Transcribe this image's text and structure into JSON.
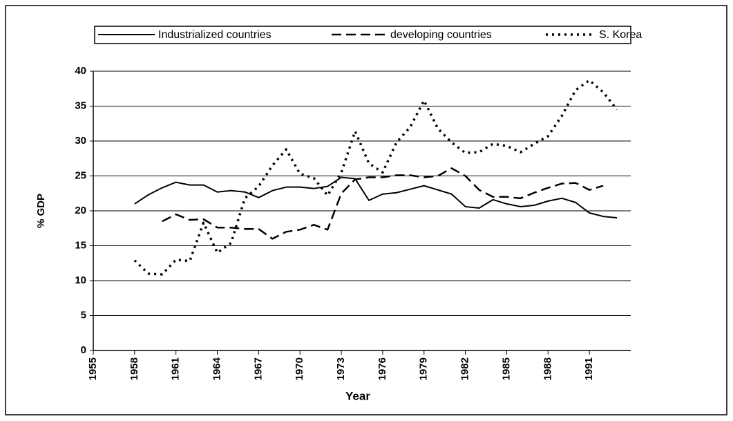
{
  "chart_data": {
    "type": "line",
    "xlabel": "Year",
    "ylabel": "% GDP",
    "x": [
      1958,
      1959,
      1960,
      1961,
      1962,
      1963,
      1964,
      1965,
      1966,
      1967,
      1968,
      1969,
      1970,
      1971,
      1972,
      1973,
      1974,
      1975,
      1976,
      1977,
      1978,
      1979,
      1980,
      1981,
      1982,
      1983,
      1984,
      1985,
      1986,
      1987,
      1988,
      1989,
      1990,
      1991,
      1992,
      1993
    ],
    "series": [
      {
        "name": "Industrialized countries",
        "color": "#000000",
        "style": "solid",
        "values": [
          21,
          22.3,
          23.3,
          24.1,
          23.7,
          23.7,
          22.7,
          22.9,
          22.7,
          21.9,
          22.9,
          23.4,
          23.4,
          23.2,
          23.5,
          24.8,
          24.6,
          21.5,
          22.4,
          22.6,
          23.1,
          23.6,
          23.0,
          22.4,
          20.6,
          20.4,
          21.6,
          21.0,
          20.6,
          20.8,
          21.4,
          21.8,
          21.2,
          19.7,
          19.2,
          19.0
        ]
      },
      {
        "name": "developing countries",
        "color": "#000000",
        "style": "dashed",
        "values": [
          null,
          null,
          18.5,
          19.5,
          18.7,
          18.8,
          17.6,
          17.6,
          17.4,
          17.4,
          16.0,
          17.0,
          17.3,
          18.0,
          17.3,
          22.5,
          24.5,
          24.8,
          24.8,
          25.1,
          25.1,
          24.8,
          25.0,
          26.1,
          25.0,
          23.0,
          22.0,
          22.0,
          21.8,
          22.6,
          23.3,
          23.9,
          24.0,
          23.0,
          23.6,
          null
        ]
      },
      {
        "name": "S. Korea",
        "color": "#000000",
        "style": "dotted",
        "values": [
          12.9,
          11.0,
          10.9,
          13.0,
          12.8,
          18.3,
          14.0,
          15.4,
          21.8,
          23.5,
          26.5,
          28.8,
          25.3,
          24.7,
          22.2,
          25.5,
          31.4,
          26.8,
          25.5,
          29.8,
          32.0,
          35.8,
          31.8,
          29.8,
          28.3,
          28.4,
          29.6,
          29.3,
          28.4,
          29.6,
          30.7,
          33.6,
          37.3,
          38.7,
          37.0,
          34.5
        ]
      }
    ],
    "xlim": [
      1955,
      1994
    ],
    "xticks": [
      1955,
      1958,
      1961,
      1964,
      1967,
      1970,
      1973,
      1976,
      1979,
      1982,
      1985,
      1988,
      1991
    ],
    "ylim": [
      0,
      40
    ],
    "yticks": [
      0,
      5,
      10,
      15,
      20,
      25,
      30,
      35,
      40
    ],
    "grid": true,
    "legend": "top"
  }
}
